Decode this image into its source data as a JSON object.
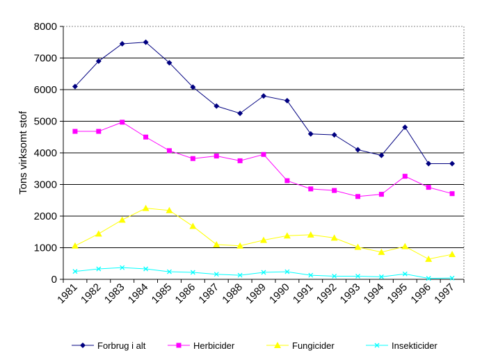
{
  "chart_data": {
    "type": "line",
    "title": "",
    "xlabel": "",
    "ylabel": "Tons virksomt stof",
    "ylim": [
      0,
      8000
    ],
    "yticks": [
      0,
      1000,
      2000,
      3000,
      4000,
      5000,
      6000,
      7000,
      8000
    ],
    "grid": "horizontal",
    "legend_position": "bottom",
    "categories": [
      "1981",
      "1982",
      "1983",
      "1984",
      "1985",
      "1986",
      "1987",
      "1988",
      "1989",
      "1990",
      "1991",
      "1992",
      "1993",
      "1994",
      "1995",
      "1996",
      "1997"
    ],
    "series": [
      {
        "name": "Forbrug i alt",
        "color": "#000080",
        "marker": "diamond",
        "values": [
          6100,
          6900,
          7450,
          7500,
          6850,
          6080,
          5480,
          5250,
          5800,
          5650,
          4600,
          4570,
          4100,
          3920,
          4810,
          3660,
          3660
        ]
      },
      {
        "name": "Herbicider",
        "color": "#ff00ff",
        "marker": "square",
        "values": [
          4680,
          4680,
          4970,
          4500,
          4070,
          3820,
          3900,
          3750,
          3950,
          3120,
          2860,
          2810,
          2620,
          2690,
          3260,
          2910,
          2710
        ]
      },
      {
        "name": "Fungicider",
        "color": "#ffff00",
        "marker": "triangle",
        "values": [
          1060,
          1440,
          1880,
          2250,
          2180,
          1680,
          1100,
          1060,
          1240,
          1380,
          1410,
          1310,
          1020,
          860,
          1040,
          640,
          790
        ]
      },
      {
        "name": "Insekticider",
        "color": "#00ffff",
        "marker": "x",
        "values": [
          250,
          330,
          370,
          330,
          240,
          220,
          160,
          130,
          220,
          240,
          130,
          100,
          100,
          80,
          170,
          30,
          40
        ]
      }
    ]
  }
}
